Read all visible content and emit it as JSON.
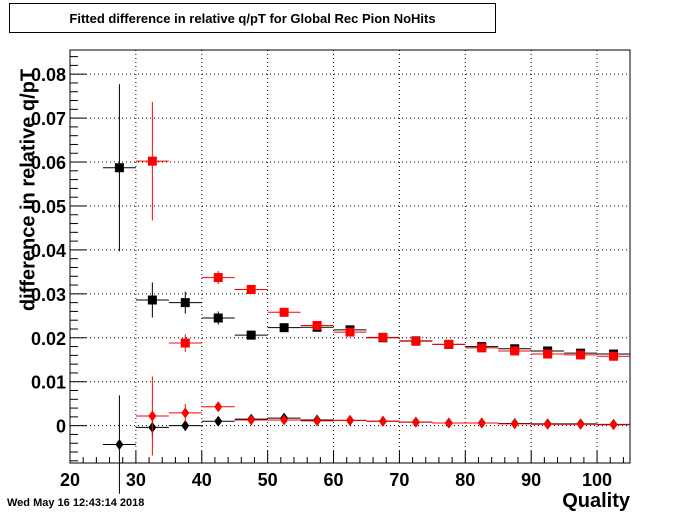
{
  "chart_data": {
    "type": "scatter",
    "title": "Fitted difference in relative q/pT for Global Rec Pion NoHits",
    "xlabel": "Quality",
    "ylabel": "difference in relative q/pT",
    "xlim": [
      20,
      105
    ],
    "ylim": [
      -0.0085,
      0.0855
    ],
    "x_ticks": [
      20,
      30,
      40,
      50,
      60,
      70,
      80,
      90,
      100
    ],
    "y_ticks": [
      0,
      0.01,
      0.02,
      0.03,
      0.04,
      0.05,
      0.06,
      0.07,
      0.08
    ],
    "y_tick_labels": [
      "0",
      "0.01",
      "0.02",
      "0.03",
      "0.04",
      "0.05",
      "0.06",
      "0.07",
      "0.08"
    ],
    "grid": true,
    "bin_half_width": 2.5,
    "series": [
      {
        "marker": "square",
        "color": "#000000",
        "points": [
          {
            "x": 27.5,
            "y": 0.0587,
            "err": 0.019
          },
          {
            "x": 32.5,
            "y": 0.0286,
            "err": 0.004
          },
          {
            "x": 37.5,
            "y": 0.028,
            "err": 0.0025
          },
          {
            "x": 42.5,
            "y": 0.0245,
            "err": 0.0015
          },
          {
            "x": 47.5,
            "y": 0.0206,
            "err": 0.001
          },
          {
            "x": 52.5,
            "y": 0.0223,
            "err": 0.0008
          },
          {
            "x": 57.5,
            "y": 0.0224,
            "err": 0.0007
          },
          {
            "x": 62.5,
            "y": 0.0218,
            "err": 0.0006
          },
          {
            "x": 67.5,
            "y": 0.02,
            "err": 0.0005
          },
          {
            "x": 72.5,
            "y": 0.0193,
            "err": 0.0005
          },
          {
            "x": 77.5,
            "y": 0.0185,
            "err": 0.0004
          },
          {
            "x": 82.5,
            "y": 0.018,
            "err": 0.0004
          },
          {
            "x": 87.5,
            "y": 0.0175,
            "err": 0.0004
          },
          {
            "x": 92.5,
            "y": 0.017,
            "err": 0.0004
          },
          {
            "x": 97.5,
            "y": 0.0165,
            "err": 0.0003
          },
          {
            "x": 102.5,
            "y": 0.0163,
            "err": 0.0003
          }
        ]
      },
      {
        "marker": "square",
        "color": "#ff0000",
        "points": [
          {
            "x": 32.5,
            "y": 0.0602,
            "err": 0.0135
          },
          {
            "x": 37.5,
            "y": 0.0188,
            "err": 0.002
          },
          {
            "x": 42.5,
            "y": 0.0337,
            "err": 0.0015
          },
          {
            "x": 47.5,
            "y": 0.031,
            "err": 0.001
          },
          {
            "x": 52.5,
            "y": 0.0258,
            "err": 0.0008
          },
          {
            "x": 57.5,
            "y": 0.0228,
            "err": 0.0007
          },
          {
            "x": 62.5,
            "y": 0.0213,
            "err": 0.0006
          },
          {
            "x": 67.5,
            "y": 0.0201,
            "err": 0.0005
          },
          {
            "x": 72.5,
            "y": 0.0192,
            "err": 0.0005
          },
          {
            "x": 77.5,
            "y": 0.0185,
            "err": 0.0004
          },
          {
            "x": 82.5,
            "y": 0.0177,
            "err": 0.0004
          },
          {
            "x": 87.5,
            "y": 0.017,
            "err": 0.0004
          },
          {
            "x": 92.5,
            "y": 0.0163,
            "err": 0.0004
          },
          {
            "x": 97.5,
            "y": 0.0161,
            "err": 0.0003
          },
          {
            "x": 102.5,
            "y": 0.0158,
            "err": 0.0003
          }
        ]
      },
      {
        "marker": "diamond",
        "color": "#000000",
        "points": [
          {
            "x": 27.5,
            "y": -0.0043,
            "err": 0.0112
          },
          {
            "x": 32.5,
            "y": -0.0004,
            "err": 0.002
          },
          {
            "x": 37.5,
            "y": 0.0,
            "err": 0.0012
          },
          {
            "x": 42.5,
            "y": 0.001,
            "err": 0.0008
          },
          {
            "x": 47.5,
            "y": 0.0015,
            "err": 0.0006
          },
          {
            "x": 52.5,
            "y": 0.0017,
            "err": 0.0005
          },
          {
            "x": 57.5,
            "y": 0.0013,
            "err": 0.0004
          },
          {
            "x": 62.5,
            "y": 0.0012,
            "err": 0.0004
          },
          {
            "x": 67.5,
            "y": 0.001,
            "err": 0.0003
          },
          {
            "x": 72.5,
            "y": 0.0008,
            "err": 0.0003
          },
          {
            "x": 77.5,
            "y": 0.0006,
            "err": 0.0003
          },
          {
            "x": 82.5,
            "y": 0.0006,
            "err": 0.0003
          },
          {
            "x": 87.5,
            "y": 0.0005,
            "err": 0.0003
          },
          {
            "x": 92.5,
            "y": 0.0004,
            "err": 0.0002
          },
          {
            "x": 97.5,
            "y": 0.0004,
            "err": 0.0002
          },
          {
            "x": 102.5,
            "y": 0.0003,
            "err": 0.0002
          }
        ]
      },
      {
        "marker": "diamond",
        "color": "#ff0000",
        "points": [
          {
            "x": 32.5,
            "y": 0.0022,
            "err": 0.009
          },
          {
            "x": 37.5,
            "y": 0.0029,
            "err": 0.002
          },
          {
            "x": 42.5,
            "y": 0.0043,
            "err": 0.001
          },
          {
            "x": 47.5,
            "y": 0.0013,
            "err": 0.0007
          },
          {
            "x": 52.5,
            "y": 0.0013,
            "err": 0.0006
          },
          {
            "x": 57.5,
            "y": 0.0011,
            "err": 0.0005
          },
          {
            "x": 62.5,
            "y": 0.0012,
            "err": 0.0004
          },
          {
            "x": 67.5,
            "y": 0.001,
            "err": 0.0004
          },
          {
            "x": 72.5,
            "y": 0.0008,
            "err": 0.0003
          },
          {
            "x": 77.5,
            "y": 0.0006,
            "err": 0.0003
          },
          {
            "x": 82.5,
            "y": 0.0006,
            "err": 0.0003
          },
          {
            "x": 87.5,
            "y": 0.0004,
            "err": 0.0003
          },
          {
            "x": 92.5,
            "y": 0.0003,
            "err": 0.0002
          },
          {
            "x": 97.5,
            "y": 0.0003,
            "err": 0.0002
          },
          {
            "x": 102.5,
            "y": 0.0002,
            "err": 0.0002
          }
        ]
      }
    ]
  },
  "timestamp": "Wed May 16 12:43:14 2018"
}
